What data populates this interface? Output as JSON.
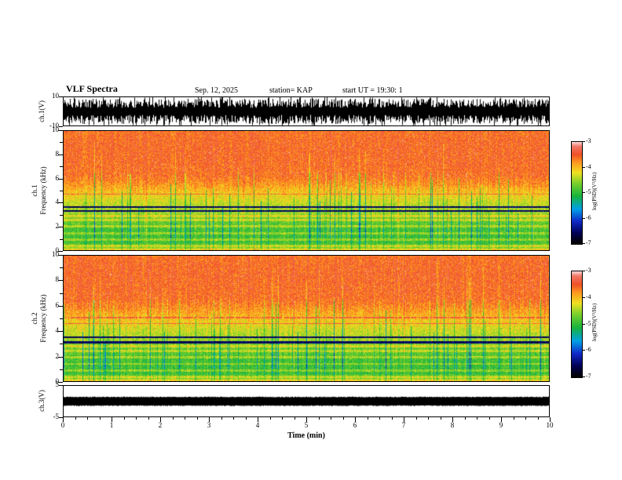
{
  "header": {
    "title": "VLF Spectra",
    "date": "Sep. 12, 2025",
    "station": "station= KAP",
    "start_ut": "start UT  =   19:30: 1"
  },
  "xaxis": {
    "label": "Time (min)",
    "min": 0,
    "max": 10,
    "ticks": [
      0,
      1,
      2,
      3,
      4,
      5,
      6,
      7,
      8,
      9,
      10
    ]
  },
  "colorbar": {
    "label": "log(PSD)(V²/Hz)",
    "max": -3,
    "min": -7,
    "ticks": [
      -3,
      -4,
      -5,
      -6,
      -7
    ]
  },
  "colormap": {
    "stops": [
      [
        0.0,
        "#000000"
      ],
      [
        0.1,
        "#000050"
      ],
      [
        0.22,
        "#1028c8"
      ],
      [
        0.34,
        "#00a0e6"
      ],
      [
        0.47,
        "#18b43c"
      ],
      [
        0.6,
        "#7ed12c"
      ],
      [
        0.7,
        "#f0e020"
      ],
      [
        0.8,
        "#ff9820"
      ],
      [
        0.88,
        "#f05028"
      ],
      [
        0.96,
        "#f07868"
      ],
      [
        1.0,
        "#ffd2d2"
      ]
    ]
  },
  "chart_data": [
    {
      "id": "wave1",
      "type": "line",
      "channel": "ch.1",
      "ylabel": "ch.1(V)",
      "ylim": [
        -10,
        10
      ],
      "yticks": [
        10,
        -10
      ],
      "x_range_min": [
        0,
        10
      ],
      "color": "#000000",
      "signal": "dense broadband noise, mean 0 V, envelope roughly ±5 to ±10 V, fills the full 10 minutes"
    },
    {
      "id": "spec1",
      "type": "heatmap",
      "channel": "ch.1",
      "ylabel": "ch.1\nFrequency (kHz)",
      "ylim": [
        0,
        10
      ],
      "yticks": [
        0,
        2,
        4,
        6,
        8,
        10
      ],
      "value_label": "log(PSD)(V²/Hz)",
      "value_range": [
        -7,
        -3
      ],
      "profile": [
        [
          0,
          -4.0
        ],
        [
          0.18,
          -4.6
        ],
        [
          0.6,
          -4.9
        ],
        [
          1.6,
          -4.9
        ],
        [
          2.5,
          -4.7
        ],
        [
          3.1,
          -4.5
        ],
        [
          3.9,
          -4.35
        ],
        [
          4.7,
          -4.1
        ],
        [
          5.5,
          -3.8
        ],
        [
          6.3,
          -3.6
        ],
        [
          8.5,
          -3.55
        ],
        [
          10,
          -3.6
        ]
      ],
      "bright_bands_khz": [
        0.35,
        0.85,
        1.4,
        2.0,
        2.5,
        2.85
      ],
      "dark_lines_khz": [
        3.3,
        3.62
      ],
      "white_lines_khz": [
        4.7
      ],
      "streak_density": 0.09,
      "streak_strength": 0.75,
      "features": "red high-power background above ~5.5 kHz with impulsive vertical sferic streaks; yellow-green 2-5 kHz; strong green below 2.5 kHz with yellow horizontal striations; two dark narrowband interference lines near 3.3 and 3.6 kHz; faint light line near 4.7 kHz"
    },
    {
      "id": "spec2",
      "type": "heatmap",
      "channel": "ch.2",
      "ylabel": "ch.2\nFrequency (kHz)",
      "ylim": [
        0,
        10
      ],
      "yticks": [
        0,
        2,
        4,
        6,
        8,
        10
      ],
      "value_label": "log(PSD)(V²/Hz)",
      "value_range": [
        -7,
        -3
      ],
      "profile": [
        [
          0,
          -4.05
        ],
        [
          0.18,
          -4.6
        ],
        [
          0.6,
          -4.95
        ],
        [
          1.7,
          -4.9
        ],
        [
          2.6,
          -4.7
        ],
        [
          3.3,
          -4.5
        ],
        [
          4.1,
          -4.3
        ],
        [
          4.9,
          -4.05
        ],
        [
          5.7,
          -3.8
        ],
        [
          6.5,
          -3.6
        ],
        [
          8.5,
          -3.55
        ],
        [
          10,
          -3.6
        ]
      ],
      "bright_bands_khz": [
        0.3,
        0.8,
        1.35,
        1.9,
        2.4,
        2.75
      ],
      "dark_lines_khz": [
        3.08,
        3.5
      ],
      "white_lines_khz": [
        4.6,
        5.05
      ],
      "streak_density": 0.12,
      "streak_strength": 0.8,
      "features": "similar to ch.1: red above ~5.5 kHz with vertical streaking, green below ~3 kHz with yellow horizontal bands, dark interference lines near 3.1 and 3.5 kHz, white/light horizontal lines near 4.6 and 5.05 kHz"
    },
    {
      "id": "wave3",
      "type": "line",
      "channel": "ch.3",
      "ylabel": "ch.3(V)",
      "ylim": [
        -5,
        5
      ],
      "yticks": [
        5,
        -5
      ],
      "x_range_min": [
        0,
        10
      ],
      "color": "#000000",
      "signal": "saturated flat black band around 0 V, roughly -1.5 to +1.3 V, constant across the full 10 minutes"
    }
  ]
}
